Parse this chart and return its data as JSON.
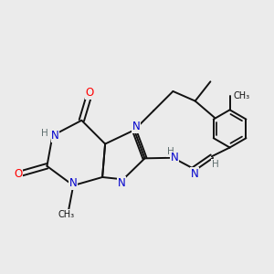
{
  "bg_color": "#ebebeb",
  "atom_colors": {
    "N": "#0000cc",
    "O": "#ff0000",
    "C": "#111111",
    "H": "#607070"
  },
  "bond_color": "#111111",
  "bond_width": 1.4,
  "font_size_atoms": 8.5
}
